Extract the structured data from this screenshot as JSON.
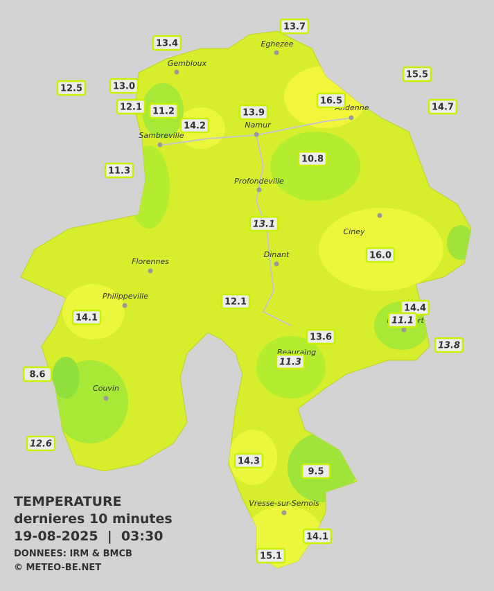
{
  "title": {
    "line1": "TEMPERATURE",
    "line2": "dernieres 10 minutes",
    "line3": "19-08-2025  |  03:30",
    "source": "DONNEES: IRM & BMCB",
    "copyright": "© METEO-BE.NET"
  },
  "cities": [
    "Eghezee",
    "Gembloux",
    "Andenne",
    "Namur",
    "Sambreville",
    "Profondeville",
    "Ciney",
    "Dinant",
    "Florennes",
    "Philippeville",
    "Rochefort",
    "Beauraing",
    "Couvin",
    "Vresse-sur-Semois"
  ],
  "stations": [
    {
      "label": "13.4"
    },
    {
      "label": "13.7"
    },
    {
      "label": "12.5"
    },
    {
      "label": "13.0"
    },
    {
      "label": "12.1"
    },
    {
      "label": "11.2"
    },
    {
      "label": "14.2"
    },
    {
      "label": "13.9"
    },
    {
      "label": "16.5"
    },
    {
      "label": "15.5"
    },
    {
      "label": "14.7"
    },
    {
      "label": "10.8"
    },
    {
      "label": "11.3"
    },
    {
      "label": "13.1",
      "italic": true
    },
    {
      "label": "16.0"
    },
    {
      "label": "12.1"
    },
    {
      "label": "14.4"
    },
    {
      "label": "14.1"
    },
    {
      "label": "11.1",
      "italic": true
    },
    {
      "label": "13.6"
    },
    {
      "label": "13.8",
      "italic": true
    },
    {
      "label": "11.3",
      "italic": true
    },
    {
      "label": "8.6"
    },
    {
      "label": "12.6",
      "italic": true
    },
    {
      "label": "14.3"
    },
    {
      "label": "9.5"
    },
    {
      "label": "14.1"
    },
    {
      "label": "15.1"
    }
  ]
}
